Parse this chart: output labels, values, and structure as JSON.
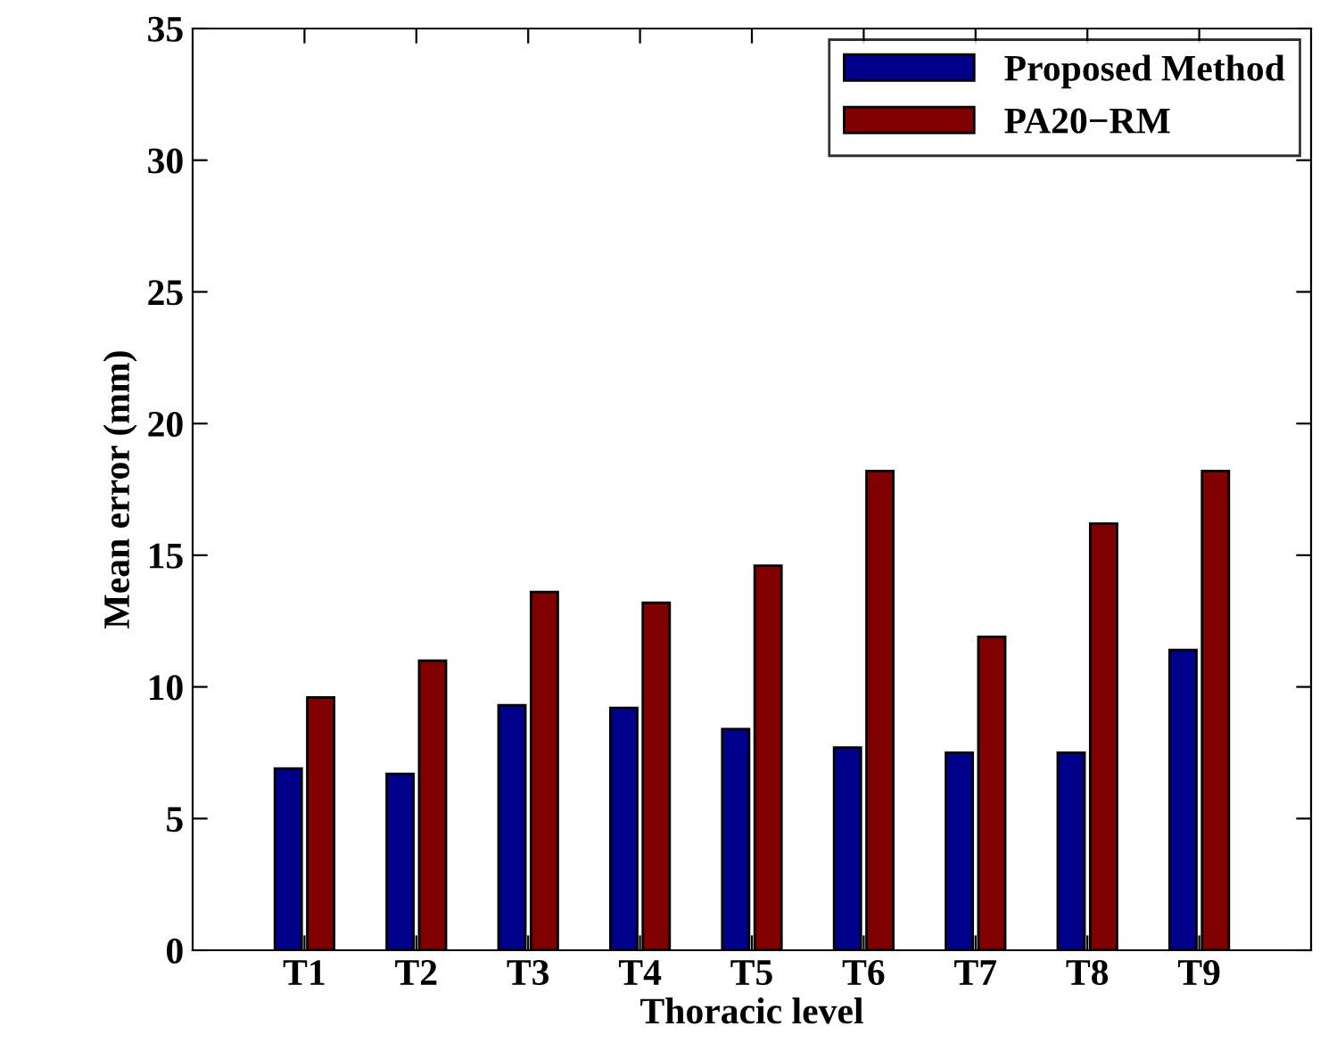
{
  "chart_data": {
    "type": "bar",
    "xlabel": "Thoracic level",
    "ylabel": "Mean error (mm)",
    "categories": [
      "T1",
      "T2",
      "T3",
      "T4",
      "T5",
      "T6",
      "T7",
      "T8",
      "T9"
    ],
    "series": [
      {
        "name": "Proposed Method",
        "color": "#00008b",
        "values": [
          6.9,
          6.7,
          9.3,
          9.2,
          8.4,
          7.7,
          7.5,
          7.5,
          11.4
        ]
      },
      {
        "name": "PA20−RM",
        "color": "#800000",
        "values": [
          9.6,
          11.0,
          13.6,
          13.2,
          14.6,
          18.2,
          11.9,
          16.2,
          18.2
        ]
      }
    ],
    "ylim": [
      0,
      35
    ],
    "yticks": [
      0,
      5,
      10,
      15,
      20,
      25,
      30,
      35
    ],
    "grid": false,
    "legend": "top right"
  }
}
